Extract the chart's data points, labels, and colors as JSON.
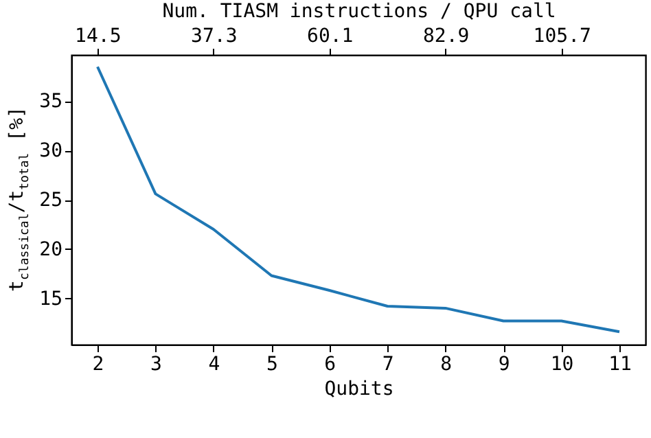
{
  "chart_data": {
    "type": "line",
    "xlabel": "Qubits",
    "ylabel": "t$_{classical}$/t$_{total}$ [%]",
    "x2label": "Num. TIASM instructions / QPU call",
    "x": [
      2,
      3,
      4,
      5,
      6,
      7,
      8,
      9,
      10,
      11
    ],
    "series": [
      {
        "color": "#1f77b4",
        "values": [
          38.5,
          25.6,
          22.0,
          17.3,
          15.8,
          14.2,
          14.0,
          12.7,
          12.7,
          11.6
        ]
      }
    ],
    "xlim": [
      1.55,
      11.45
    ],
    "xticks": [
      2,
      3,
      4,
      5,
      6,
      7,
      8,
      9,
      10,
      11
    ],
    "ylim": [
      10.3,
      39.7
    ],
    "yticks": [
      15,
      20,
      25,
      30,
      35
    ],
    "x2lim": [
      9.4,
      122.2
    ],
    "x2ticks": [
      14.5,
      37.3,
      60.1,
      82.9,
      105.7
    ],
    "grid": false,
    "marker": "none",
    "line_style": "solid"
  }
}
